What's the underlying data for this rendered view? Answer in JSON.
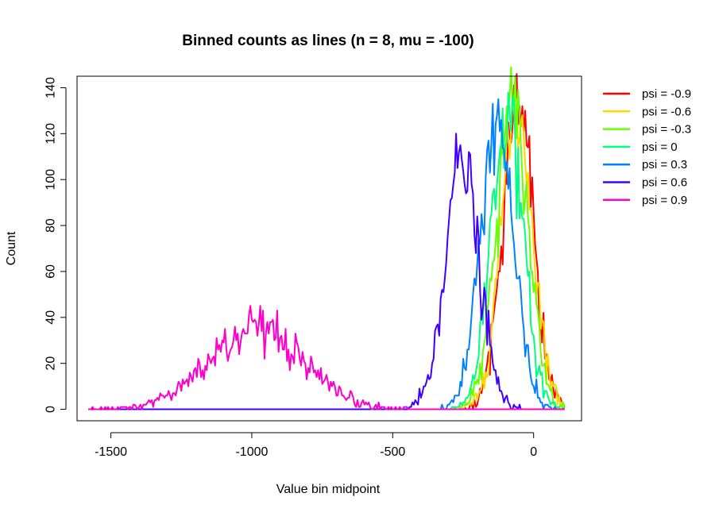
{
  "chart_data": {
    "type": "line",
    "title": "Binned counts as lines (n = 8, mu = -100)",
    "xlabel": "Value bin midpoint",
    "ylabel": "Count",
    "xlim": [
      -1620,
      170
    ],
    "ylim": [
      -5,
      145
    ],
    "x_ticks": [
      -1500,
      -1000,
      -500,
      0
    ],
    "x_tick_labels": [
      "-1500",
      "-1000",
      "-500",
      "0"
    ],
    "y_ticks": [
      0,
      20,
      40,
      60,
      80,
      100,
      120,
      140
    ],
    "y_tick_labels": [
      "0",
      "20",
      "40",
      "60",
      "80",
      "100",
      "120",
      "140"
    ],
    "grid": false,
    "legend_position": "outside-right",
    "series": [
      {
        "name": "psi = -0.9",
        "color": "#ff0000",
        "center": -55,
        "sd": 55,
        "peak": 133,
        "x_range": [
          -1580,
          112
        ]
      },
      {
        "name": "psi = -0.6",
        "color": "#ffd700",
        "center": -60,
        "sd": 57,
        "peak": 130,
        "x_range": [
          -1580,
          112
        ]
      },
      {
        "name": "psi = -0.3",
        "color": "#66ff00",
        "center": -75,
        "sd": 57,
        "peak": 132,
        "x_range": [
          -1580,
          112
        ]
      },
      {
        "name": "psi = 0",
        "color": "#00ff80",
        "center": -95,
        "sd": 57,
        "peak": 128,
        "x_range": [
          -1580,
          112
        ]
      },
      {
        "name": "psi = 0.3",
        "color": "#0080ff",
        "center": -130,
        "sd": 58,
        "peak": 127,
        "x_range": [
          -1580,
          112
        ]
      },
      {
        "name": "psi = 0.6",
        "color": "#4000ff",
        "center": -255,
        "sd": 60,
        "peak": 108,
        "x_range": [
          -1580,
          112
        ]
      },
      {
        "name": "psi = 0.9",
        "color": "#ff00cc",
        "center": -990,
        "sd": 165,
        "peak": 34,
        "x_range": [
          -1580,
          112
        ]
      }
    ]
  }
}
